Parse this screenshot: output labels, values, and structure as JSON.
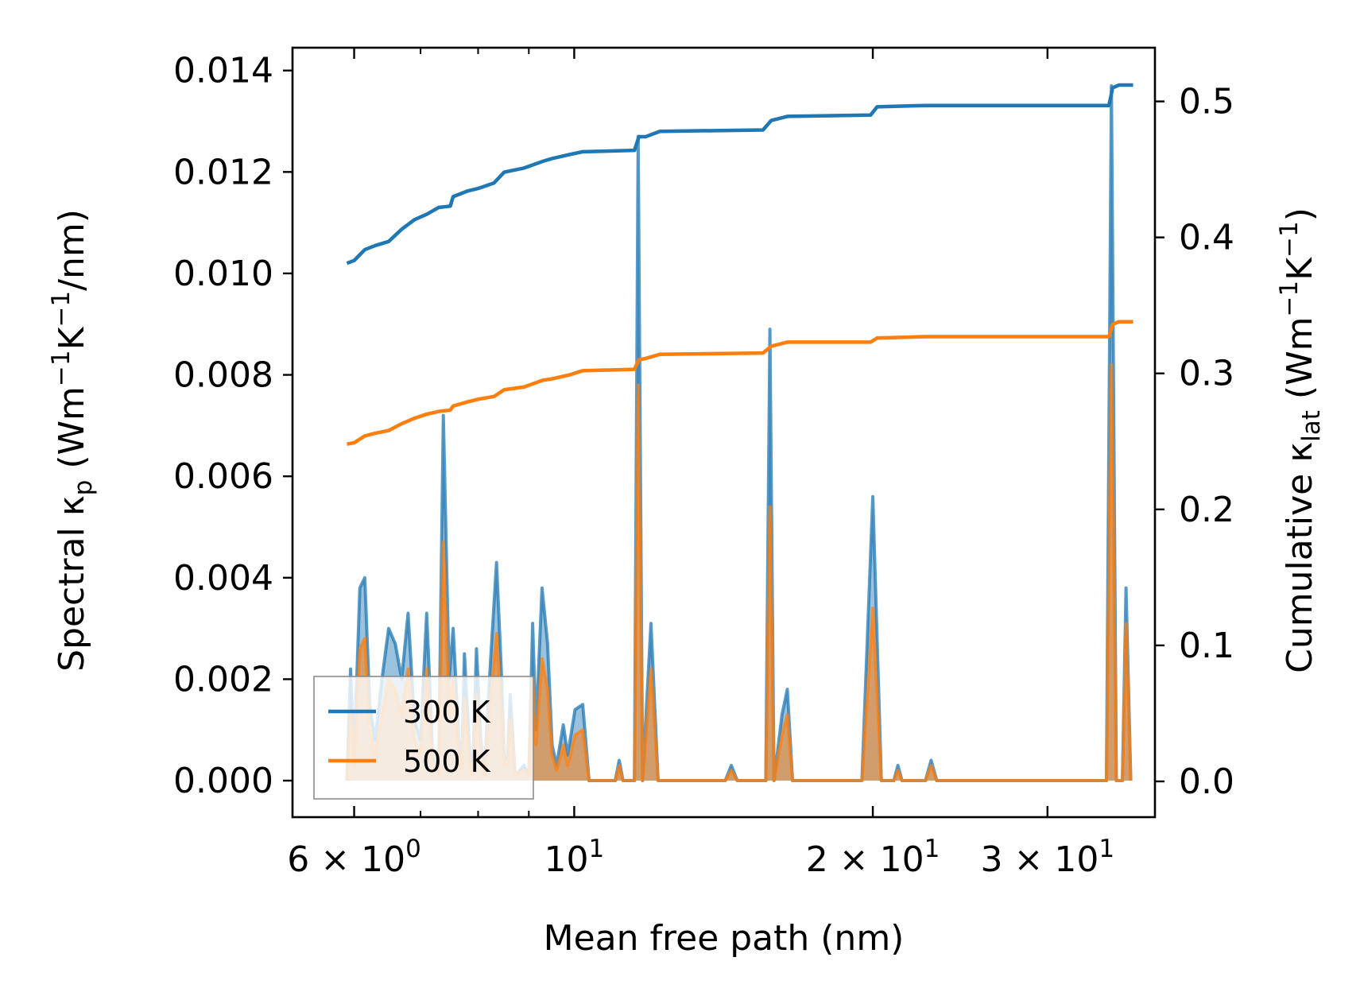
{
  "chart_data": {
    "type": "line",
    "xscale": "log",
    "xlabel": "Mean free path (nm)",
    "xlim": [
      5.2,
      38.5
    ],
    "x_ticks": [
      {
        "value": 6,
        "base": "6 × 10",
        "exp": "0"
      },
      {
        "value": 10,
        "base": "10",
        "exp": "1"
      },
      {
        "value": 20,
        "base": "2 × 10",
        "exp": "1"
      },
      {
        "value": 30,
        "base": "3 × 10",
        "exp": "1"
      }
    ],
    "x_minor_ticks": [
      7,
      8,
      9,
      40
    ],
    "y_left": {
      "label_prefix": "Spectral κ",
      "label_sub": "p",
      "label_unit_parts": [
        " (Wm",
        "−1",
        "K",
        "−1",
        "/nm)"
      ],
      "ylim": [
        -0.00072,
        0.01445
      ],
      "ticks": [
        "0.000",
        "0.002",
        "0.004",
        "0.006",
        "0.008",
        "0.010",
        "0.012",
        "0.014"
      ],
      "tick_values": [
        0,
        0.002,
        0.004,
        0.006,
        0.008,
        0.01,
        0.012,
        0.014
      ]
    },
    "y_right": {
      "label_prefix": "Cumulative κ",
      "label_sub": "lat",
      "label_unit_parts": [
        " (Wm",
        "−1",
        "K",
        "−1",
        ")"
      ],
      "ylim": [
        -0.0263,
        0.5395
      ],
      "ticks": [
        "0.0",
        "0.1",
        "0.2",
        "0.3",
        "0.4",
        "0.5"
      ],
      "tick_values": [
        0,
        0.1,
        0.2,
        0.3,
        0.4,
        0.5
      ]
    },
    "legend": {
      "position": "lower left",
      "entries": [
        {
          "label": "300 K",
          "color": "#1f77b4"
        },
        {
          "label": "500 K",
          "color": "#ff7f0e"
        }
      ]
    },
    "series": [
      {
        "name": "300 K",
        "color": "#1f77b4",
        "spectral": [
          [
            5.9,
            0
          ],
          [
            5.95,
            0.0022
          ],
          [
            6.0,
            0.0005
          ],
          [
            6.08,
            0.0038
          ],
          [
            6.15,
            0.004
          ],
          [
            6.22,
            0.0015
          ],
          [
            6.3,
            0.0008
          ],
          [
            6.4,
            0.002
          ],
          [
            6.5,
            0.003
          ],
          [
            6.6,
            0.0027
          ],
          [
            6.7,
            0.002
          ],
          [
            6.8,
            0.0033
          ],
          [
            6.9,
            0.0012
          ],
          [
            7.0,
            0.0008
          ],
          [
            7.1,
            0.0033
          ],
          [
            7.2,
            0.0005
          ],
          [
            7.3,
            0.0002
          ],
          [
            7.38,
            0.0072
          ],
          [
            7.48,
            0.002
          ],
          [
            7.55,
            0.003
          ],
          [
            7.65,
            0.0008
          ],
          [
            7.7,
            0.0003
          ],
          [
            7.75,
            0.0025
          ],
          [
            7.85,
            0.0005
          ],
          [
            7.9,
            0.0002
          ],
          [
            7.97,
            0.0026
          ],
          [
            8.05,
            0.0008
          ],
          [
            8.12,
            0.0002
          ],
          [
            8.22,
            0.0021
          ],
          [
            8.35,
            0.0043
          ],
          [
            8.45,
            0.002
          ],
          [
            8.5,
            0.0004
          ],
          [
            8.57,
            0.0005
          ],
          [
            8.62,
            0.0017
          ],
          [
            8.72,
            0.0001
          ],
          [
            8.9,
            0.0003
          ],
          [
            9.0,
            0.0001
          ],
          [
            9.08,
            0.0031
          ],
          [
            9.15,
            0.001
          ],
          [
            9.28,
            0.0038
          ],
          [
            9.4,
            0.0027
          ],
          [
            9.5,
            0.0007
          ],
          [
            9.6,
            0.0003
          ],
          [
            9.75,
            0.0011
          ],
          [
            9.85,
            0.0005
          ],
          [
            10.02,
            0.0014
          ],
          [
            10.2,
            0.0015
          ],
          [
            10.35,
            0
          ],
          [
            11.0,
            0
          ],
          [
            11.1,
            0.0004
          ],
          [
            11.2,
            0
          ],
          [
            11.5,
            0
          ],
          [
            11.6,
            0.0127
          ],
          [
            11.72,
            0
          ],
          [
            11.95,
            0.0031
          ],
          [
            12.15,
            0
          ],
          [
            14.2,
            0
          ],
          [
            14.4,
            0.0003
          ],
          [
            14.6,
            0
          ],
          [
            15.6,
            0
          ],
          [
            15.75,
            0.0089
          ],
          [
            15.9,
            0
          ],
          [
            16.2,
            0.0013
          ],
          [
            16.4,
            0.0018
          ],
          [
            16.6,
            0
          ],
          [
            19.5,
            0
          ],
          [
            20.0,
            0.0056
          ],
          [
            20.4,
            0
          ],
          [
            21.0,
            0
          ],
          [
            21.2,
            0.0003
          ],
          [
            21.4,
            0
          ],
          [
            22.6,
            0
          ],
          [
            22.9,
            0.0004
          ],
          [
            23.2,
            0
          ],
          [
            34.4,
            0
          ],
          [
            34.8,
            0.0137
          ],
          [
            35.2,
            0
          ],
          [
            35.7,
            0
          ],
          [
            36.0,
            0.0038
          ],
          [
            36.4,
            0
          ]
        ],
        "cumulative": [
          [
            5.9,
            0.381
          ],
          [
            6.0,
            0.383
          ],
          [
            6.15,
            0.391
          ],
          [
            6.3,
            0.394
          ],
          [
            6.5,
            0.397
          ],
          [
            6.7,
            0.406
          ],
          [
            6.9,
            0.413
          ],
          [
            7.1,
            0.417
          ],
          [
            7.3,
            0.422
          ],
          [
            7.5,
            0.423
          ],
          [
            7.55,
            0.43
          ],
          [
            7.8,
            0.434
          ],
          [
            8.0,
            0.436
          ],
          [
            8.3,
            0.44
          ],
          [
            8.5,
            0.448
          ],
          [
            8.9,
            0.451
          ],
          [
            9.3,
            0.456
          ],
          [
            9.5,
            0.458
          ],
          [
            9.9,
            0.461
          ],
          [
            10.2,
            0.463
          ],
          [
            11.5,
            0.464
          ],
          [
            11.62,
            0.474
          ],
          [
            11.8,
            0.474
          ],
          [
            12.2,
            0.478
          ],
          [
            15.5,
            0.479
          ],
          [
            15.8,
            0.486
          ],
          [
            16.4,
            0.489
          ],
          [
            19.9,
            0.49
          ],
          [
            20.2,
            0.496
          ],
          [
            22.6,
            0.497
          ],
          [
            34.6,
            0.497
          ],
          [
            34.9,
            0.51
          ],
          [
            35.4,
            0.512
          ],
          [
            36.6,
            0.512
          ]
        ]
      },
      {
        "name": "500 K",
        "color": "#ff7f0e",
        "spectral": [
          [
            5.9,
            0
          ],
          [
            5.95,
            0.0014
          ],
          [
            6.0,
            0.0003
          ],
          [
            6.08,
            0.0026
          ],
          [
            6.15,
            0.0028
          ],
          [
            6.22,
            0.001
          ],
          [
            6.3,
            0.0005
          ],
          [
            6.4,
            0.0013
          ],
          [
            6.5,
            0.002
          ],
          [
            6.6,
            0.0018
          ],
          [
            6.7,
            0.0013
          ],
          [
            6.8,
            0.0022
          ],
          [
            6.9,
            0.0008
          ],
          [
            7.0,
            0.0005
          ],
          [
            7.1,
            0.0022
          ],
          [
            7.2,
            0.0003
          ],
          [
            7.3,
            0.0001
          ],
          [
            7.38,
            0.0047
          ],
          [
            7.48,
            0.0013
          ],
          [
            7.55,
            0.002
          ],
          [
            7.65,
            0.0005
          ],
          [
            7.7,
            0.0002
          ],
          [
            7.75,
            0.0016
          ],
          [
            7.85,
            0.0003
          ],
          [
            7.9,
            0.0001
          ],
          [
            7.97,
            0.0017
          ],
          [
            8.05,
            0.0005
          ],
          [
            8.12,
            0.0001
          ],
          [
            8.22,
            0.0014
          ],
          [
            8.35,
            0.0029
          ],
          [
            8.45,
            0.0013
          ],
          [
            8.5,
            0.0003
          ],
          [
            8.57,
            0.0003
          ],
          [
            8.62,
            0.0012
          ],
          [
            8.72,
            0.0001
          ],
          [
            8.9,
            0.0002
          ],
          [
            9.0,
            0.0001
          ],
          [
            9.08,
            0.002
          ],
          [
            9.15,
            0.0007
          ],
          [
            9.28,
            0.0024
          ],
          [
            9.4,
            0.0018
          ],
          [
            9.5,
            0.0005
          ],
          [
            9.6,
            0.0002
          ],
          [
            9.75,
            0.0007
          ],
          [
            9.85,
            0.0003
          ],
          [
            10.02,
            0.0009
          ],
          [
            10.2,
            0.001
          ],
          [
            10.35,
            0
          ],
          [
            11.0,
            0
          ],
          [
            11.1,
            0.0003
          ],
          [
            11.2,
            0
          ],
          [
            11.5,
            0
          ],
          [
            11.6,
            0.0078
          ],
          [
            11.72,
            0
          ],
          [
            11.95,
            0.0022
          ],
          [
            12.15,
            0
          ],
          [
            14.2,
            0
          ],
          [
            14.4,
            0.0002
          ],
          [
            14.6,
            0
          ],
          [
            15.6,
            0
          ],
          [
            15.75,
            0.0054
          ],
          [
            15.9,
            0
          ],
          [
            16.2,
            0.0009
          ],
          [
            16.4,
            0.0013
          ],
          [
            16.6,
            0
          ],
          [
            19.5,
            0
          ],
          [
            20.0,
            0.0034
          ],
          [
            20.4,
            0
          ],
          [
            21.0,
            0
          ],
          [
            21.2,
            0.0002
          ],
          [
            21.4,
            0
          ],
          [
            22.6,
            0
          ],
          [
            22.9,
            0.0003
          ],
          [
            23.2,
            0
          ],
          [
            34.4,
            0
          ],
          [
            34.8,
            0.0082
          ],
          [
            35.2,
            0
          ],
          [
            35.7,
            0
          ],
          [
            36.0,
            0.0031
          ],
          [
            36.4,
            0
          ]
        ],
        "cumulative": [
          [
            5.9,
            0.248
          ],
          [
            6.0,
            0.249
          ],
          [
            6.15,
            0.254
          ],
          [
            6.3,
            0.256
          ],
          [
            6.5,
            0.258
          ],
          [
            6.7,
            0.263
          ],
          [
            6.9,
            0.267
          ],
          [
            7.1,
            0.27
          ],
          [
            7.3,
            0.272
          ],
          [
            7.5,
            0.273
          ],
          [
            7.55,
            0.276
          ],
          [
            7.8,
            0.279
          ],
          [
            8.0,
            0.281
          ],
          [
            8.3,
            0.283
          ],
          [
            8.5,
            0.288
          ],
          [
            8.9,
            0.29
          ],
          [
            9.3,
            0.295
          ],
          [
            9.5,
            0.296
          ],
          [
            9.9,
            0.299
          ],
          [
            10.2,
            0.302
          ],
          [
            11.5,
            0.303
          ],
          [
            11.62,
            0.31
          ],
          [
            11.8,
            0.311
          ],
          [
            12.2,
            0.314
          ],
          [
            15.5,
            0.315
          ],
          [
            15.8,
            0.32
          ],
          [
            16.4,
            0.323
          ],
          [
            19.9,
            0.323
          ],
          [
            20.2,
            0.326
          ],
          [
            22.6,
            0.327
          ],
          [
            34.6,
            0.327
          ],
          [
            34.9,
            0.336
          ],
          [
            35.4,
            0.338
          ],
          [
            36.6,
            0.338
          ]
        ]
      }
    ]
  }
}
